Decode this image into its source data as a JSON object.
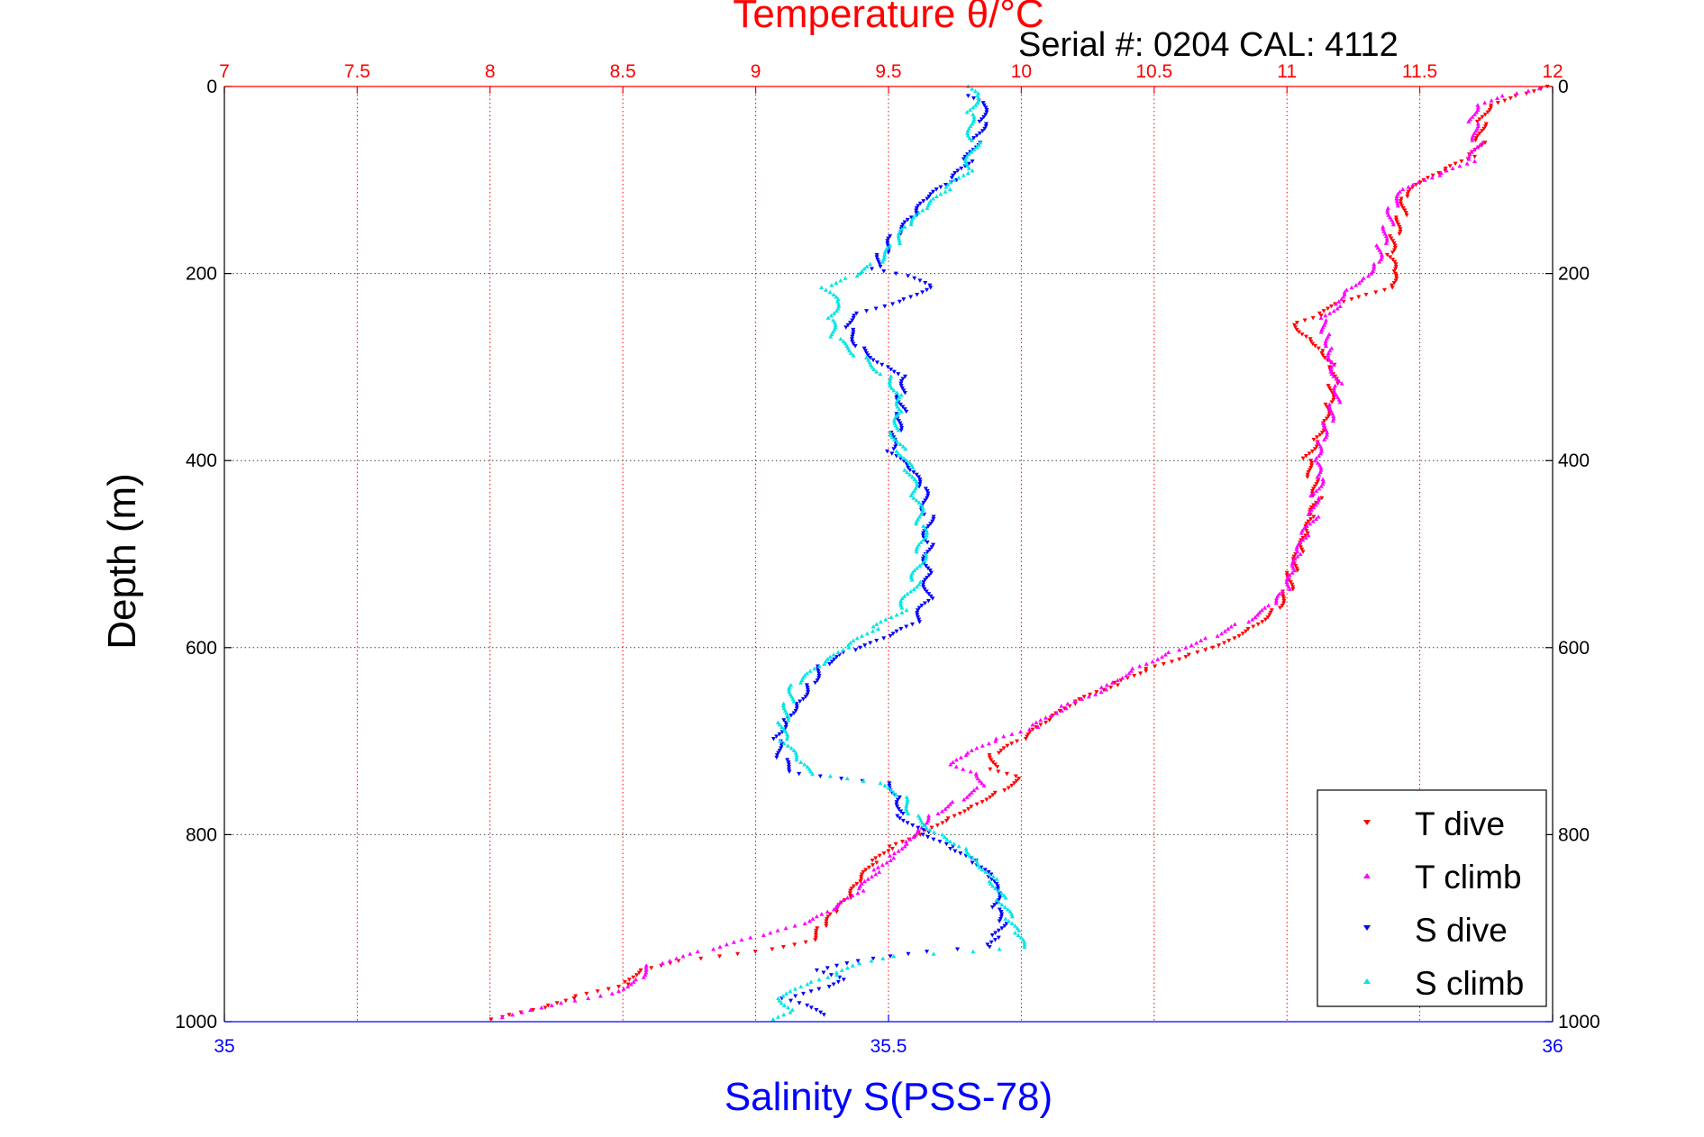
{
  "chart_data": {
    "type": "scatter",
    "title": "Temperature θ/°C",
    "subtitle": "Serial #: 0204  CAL: 4112",
    "ylabel": "Depth (m)",
    "xlabel": "Salinity S(PSS-78)",
    "ylim": [
      0,
      1000
    ],
    "y_reversed": true,
    "y_ticks": [
      "0",
      "200",
      "400",
      "600",
      "800",
      "1000"
    ],
    "temperature_axis": {
      "position": "top",
      "range": [
        7,
        12
      ],
      "ticks": [
        "7",
        "7.5",
        "8",
        "8.5",
        "9",
        "9.5",
        "10",
        "10.5",
        "11",
        "11.5",
        "12"
      ],
      "color": "#ff0000"
    },
    "salinity_axis": {
      "position": "bottom",
      "range": [
        35,
        36
      ],
      "ticks": [
        "35",
        "35.5",
        "36"
      ],
      "color": "#0000ff"
    },
    "grid": true,
    "legend_position": "bottom-right",
    "series": [
      {
        "name": "T dive",
        "axis": "temperature",
        "color": "#ff0000",
        "marker": "triangle-down",
        "points": [
          [
            11.98,
            0
          ],
          [
            11.85,
            10
          ],
          [
            11.75,
            20
          ],
          [
            11.73,
            40
          ],
          [
            11.73,
            60
          ],
          [
            11.7,
            75
          ],
          [
            11.6,
            90
          ],
          [
            11.5,
            105
          ],
          [
            11.45,
            120
          ],
          [
            11.43,
            140
          ],
          [
            11.4,
            160
          ],
          [
            11.38,
            180
          ],
          [
            11.4,
            200
          ],
          [
            11.38,
            215
          ],
          [
            11.25,
            225
          ],
          [
            11.15,
            235
          ],
          [
            11.12,
            245
          ],
          [
            11.03,
            255
          ],
          [
            11.1,
            270
          ],
          [
            11.15,
            285
          ],
          [
            11.18,
            300
          ],
          [
            11.17,
            320
          ],
          [
            11.15,
            340
          ],
          [
            11.13,
            360
          ],
          [
            11.1,
            380
          ],
          [
            11.07,
            400
          ],
          [
            11.1,
            420
          ],
          [
            11.12,
            440
          ],
          [
            11.1,
            460
          ],
          [
            11.08,
            480
          ],
          [
            11.05,
            500
          ],
          [
            11.02,
            520
          ],
          [
            11.0,
            540
          ],
          [
            10.95,
            560
          ],
          [
            10.85,
            580
          ],
          [
            10.75,
            595
          ],
          [
            10.6,
            610
          ],
          [
            10.45,
            625
          ],
          [
            10.35,
            640
          ],
          [
            10.2,
            660
          ],
          [
            10.1,
            680
          ],
          [
            10.0,
            700
          ],
          [
            9.9,
            715
          ],
          [
            9.9,
            730
          ],
          [
            10.0,
            740
          ],
          [
            9.9,
            755
          ],
          [
            9.8,
            770
          ],
          [
            9.7,
            785
          ],
          [
            9.6,
            800
          ],
          [
            9.5,
            815
          ],
          [
            9.45,
            830
          ],
          [
            9.4,
            850
          ],
          [
            9.35,
            870
          ],
          [
            9.3,
            885
          ],
          [
            9.25,
            900
          ],
          [
            9.2,
            915
          ],
          [
            9.0,
            925
          ],
          [
            8.7,
            935
          ],
          [
            8.55,
            945
          ],
          [
            8.5,
            960
          ],
          [
            8.3,
            975
          ],
          [
            8.2,
            985
          ],
          [
            8.05,
            995
          ],
          [
            7.98,
            1000
          ]
        ]
      },
      {
        "name": "T climb",
        "axis": "temperature",
        "color": "#ff00ff",
        "marker": "triangle-up",
        "points": [
          [
            11.95,
            2
          ],
          [
            11.8,
            10
          ],
          [
            11.7,
            20
          ],
          [
            11.7,
            40
          ],
          [
            11.72,
            60
          ],
          [
            11.7,
            80
          ],
          [
            11.58,
            95
          ],
          [
            11.45,
            110
          ],
          [
            11.4,
            130
          ],
          [
            11.38,
            150
          ],
          [
            11.35,
            170
          ],
          [
            11.33,
            190
          ],
          [
            11.28,
            205
          ],
          [
            11.2,
            220
          ],
          [
            11.18,
            235
          ],
          [
            11.13,
            250
          ],
          [
            11.15,
            265
          ],
          [
            11.17,
            280
          ],
          [
            11.18,
            300
          ],
          [
            11.2,
            320
          ],
          [
            11.18,
            340
          ],
          [
            11.15,
            360
          ],
          [
            11.12,
            380
          ],
          [
            11.1,
            400
          ],
          [
            11.12,
            420
          ],
          [
            11.1,
            440
          ],
          [
            11.1,
            460
          ],
          [
            11.07,
            480
          ],
          [
            11.05,
            500
          ],
          [
            11.03,
            520
          ],
          [
            11.0,
            540
          ],
          [
            10.95,
            555
          ],
          [
            10.82,
            575
          ],
          [
            10.7,
            590
          ],
          [
            10.55,
            605
          ],
          [
            10.4,
            625
          ],
          [
            10.3,
            645
          ],
          [
            10.15,
            665
          ],
          [
            10.05,
            685
          ],
          [
            9.9,
            700
          ],
          [
            9.8,
            715
          ],
          [
            9.75,
            725
          ],
          [
            9.85,
            735
          ],
          [
            9.85,
            750
          ],
          [
            9.75,
            765
          ],
          [
            9.65,
            780
          ],
          [
            9.6,
            795
          ],
          [
            9.55,
            810
          ],
          [
            9.5,
            825
          ],
          [
            9.45,
            840
          ],
          [
            9.4,
            860
          ],
          [
            9.3,
            880
          ],
          [
            9.2,
            895
          ],
          [
            9.0,
            910
          ],
          [
            8.8,
            925
          ],
          [
            8.6,
            940
          ],
          [
            8.55,
            955
          ],
          [
            8.45,
            970
          ],
          [
            8.25,
            980
          ],
          [
            8.1,
            990
          ],
          [
            8.0,
            998
          ]
        ]
      },
      {
        "name": "S dive",
        "axis": "salinity",
        "color": "#0000ff",
        "marker": "triangle-down",
        "points": [
          [
            35.56,
            10
          ],
          [
            35.57,
            20
          ],
          [
            35.57,
            40
          ],
          [
            35.565,
            60
          ],
          [
            35.56,
            80
          ],
          [
            35.55,
            100
          ],
          [
            35.53,
            120
          ],
          [
            35.52,
            140
          ],
          [
            35.505,
            160
          ],
          [
            35.495,
            180
          ],
          [
            35.49,
            195
          ],
          [
            35.52,
            205
          ],
          [
            35.53,
            215
          ],
          [
            35.505,
            230
          ],
          [
            35.47,
            245
          ],
          [
            35.47,
            260
          ],
          [
            35.48,
            280
          ],
          [
            35.5,
            300
          ],
          [
            35.515,
            310
          ],
          [
            35.51,
            330
          ],
          [
            35.51,
            350
          ],
          [
            35.505,
            370
          ],
          [
            35.5,
            390
          ],
          [
            35.515,
            410
          ],
          [
            35.525,
            430
          ],
          [
            35.53,
            460
          ],
          [
            35.53,
            490
          ],
          [
            35.53,
            520
          ],
          [
            35.53,
            550
          ],
          [
            35.52,
            575
          ],
          [
            35.5,
            590
          ],
          [
            35.47,
            605
          ],
          [
            35.45,
            620
          ],
          [
            35.44,
            640
          ],
          [
            35.43,
            660
          ],
          [
            35.42,
            680
          ],
          [
            35.415,
            700
          ],
          [
            35.42,
            720
          ],
          [
            35.43,
            735
          ],
          [
            35.5,
            745
          ],
          [
            35.51,
            760
          ],
          [
            35.51,
            780
          ],
          [
            35.53,
            800
          ],
          [
            35.55,
            815
          ],
          [
            35.565,
            830
          ],
          [
            35.575,
            845
          ],
          [
            35.58,
            860
          ],
          [
            35.58,
            880
          ],
          [
            35.585,
            895
          ],
          [
            35.58,
            910
          ],
          [
            35.575,
            920
          ],
          [
            35.53,
            925
          ],
          [
            35.48,
            935
          ],
          [
            35.45,
            945
          ],
          [
            35.47,
            955
          ],
          [
            35.45,
            965
          ],
          [
            35.42,
            975
          ],
          [
            35.44,
            985
          ],
          [
            35.45,
            995
          ]
        ]
      },
      {
        "name": "S climb",
        "axis": "salinity",
        "color": "#00e5e5",
        "marker": "triangle-up",
        "points": [
          [
            35.56,
            0
          ],
          [
            35.565,
            10
          ],
          [
            35.56,
            30
          ],
          [
            35.565,
            60
          ],
          [
            35.56,
            90
          ],
          [
            35.545,
            110
          ],
          [
            35.53,
            130
          ],
          [
            35.515,
            150
          ],
          [
            35.505,
            170
          ],
          [
            35.49,
            190
          ],
          [
            35.47,
            205
          ],
          [
            35.45,
            215
          ],
          [
            35.46,
            230
          ],
          [
            35.455,
            250
          ],
          [
            35.46,
            270
          ],
          [
            35.48,
            290
          ],
          [
            35.5,
            310
          ],
          [
            35.51,
            330
          ],
          [
            35.51,
            350
          ],
          [
            35.505,
            370
          ],
          [
            35.51,
            390
          ],
          [
            35.515,
            410
          ],
          [
            35.52,
            440
          ],
          [
            35.525,
            470
          ],
          [
            35.525,
            500
          ],
          [
            35.52,
            530
          ],
          [
            35.51,
            560
          ],
          [
            35.49,
            580
          ],
          [
            35.47,
            600
          ],
          [
            35.45,
            620
          ],
          [
            35.43,
            640
          ],
          [
            35.425,
            660
          ],
          [
            35.42,
            680
          ],
          [
            35.42,
            700
          ],
          [
            35.43,
            720
          ],
          [
            35.44,
            735
          ],
          [
            35.49,
            745
          ],
          [
            35.51,
            760
          ],
          [
            35.52,
            780
          ],
          [
            35.54,
            800
          ],
          [
            35.56,
            815
          ],
          [
            35.57,
            830
          ],
          [
            35.58,
            850
          ],
          [
            35.585,
            870
          ],
          [
            35.59,
            890
          ],
          [
            35.595,
            905
          ],
          [
            35.6,
            920
          ],
          [
            35.56,
            925
          ],
          [
            35.5,
            930
          ],
          [
            35.47,
            940
          ],
          [
            35.46,
            950
          ],
          [
            35.44,
            960
          ],
          [
            35.42,
            975
          ],
          [
            35.43,
            990
          ],
          [
            35.41,
            1000
          ]
        ]
      }
    ]
  },
  "legend": {
    "items": [
      {
        "label": "T dive",
        "color": "#ff0000",
        "marker": "triangle-down"
      },
      {
        "label": "T climb",
        "color": "#ff00ff",
        "marker": "triangle-up"
      },
      {
        "label": "S dive",
        "color": "#0000ff",
        "marker": "triangle-down"
      },
      {
        "label": "S climb",
        "color": "#00e5e5",
        "marker": "triangle-up"
      }
    ]
  }
}
